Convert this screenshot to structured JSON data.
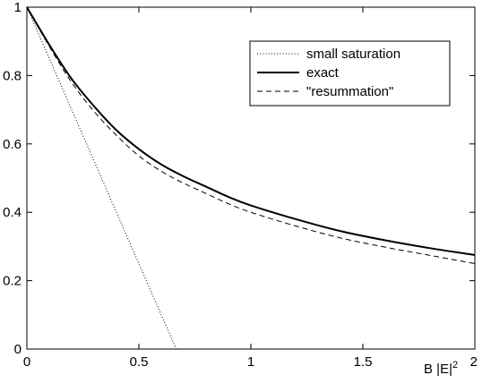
{
  "chart_data": {
    "type": "line",
    "title": "",
    "xlabel": "B |E|",
    "xlabel_superscript": "2",
    "ylabel": "",
    "xlim": [
      0,
      2
    ],
    "ylim": [
      0,
      1
    ],
    "x_ticks": [
      0,
      0.5,
      1,
      1.5,
      2
    ],
    "x_tick_labels": [
      "0",
      "0.5",
      "1",
      "1.5",
      "2"
    ],
    "y_ticks": [
      0,
      0.2,
      0.4,
      0.6,
      0.8,
      1
    ],
    "y_tick_labels": [
      "0",
      "0.2",
      "0.4",
      "0.6",
      "0.8",
      "1"
    ],
    "grid": false,
    "legend_position": "top-right",
    "series": [
      {
        "name": "small saturation",
        "style": "dotted",
        "x": [
          0,
          0.1,
          0.2,
          0.3,
          0.4,
          0.5,
          0.6,
          0.667
        ],
        "y": [
          1.0,
          0.85,
          0.7,
          0.55,
          0.4,
          0.25,
          0.1,
          0.0
        ]
      },
      {
        "name": "exact",
        "style": "solid",
        "x": [
          0,
          0.1,
          0.2,
          0.3,
          0.4,
          0.5,
          0.6,
          0.7,
          0.8,
          0.9,
          1.0,
          1.2,
          1.4,
          1.6,
          1.8,
          2.0
        ],
        "y": [
          1.0,
          0.89,
          0.79,
          0.71,
          0.64,
          0.585,
          0.54,
          0.505,
          0.475,
          0.445,
          0.42,
          0.38,
          0.345,
          0.318,
          0.295,
          0.275
        ]
      },
      {
        "name": "\"resummation\"",
        "style": "dashed",
        "x": [
          0,
          0.1,
          0.2,
          0.3,
          0.4,
          0.5,
          0.6,
          0.7,
          0.8,
          0.9,
          1.0,
          1.2,
          1.4,
          1.6,
          1.8,
          2.0
        ],
        "y": [
          1.0,
          0.885,
          0.78,
          0.695,
          0.625,
          0.565,
          0.52,
          0.485,
          0.455,
          0.425,
          0.4,
          0.36,
          0.325,
          0.298,
          0.274,
          0.25
        ]
      }
    ]
  },
  "colors": {
    "axis": "#000000",
    "line": "#000000",
    "background": "#ffffff"
  }
}
